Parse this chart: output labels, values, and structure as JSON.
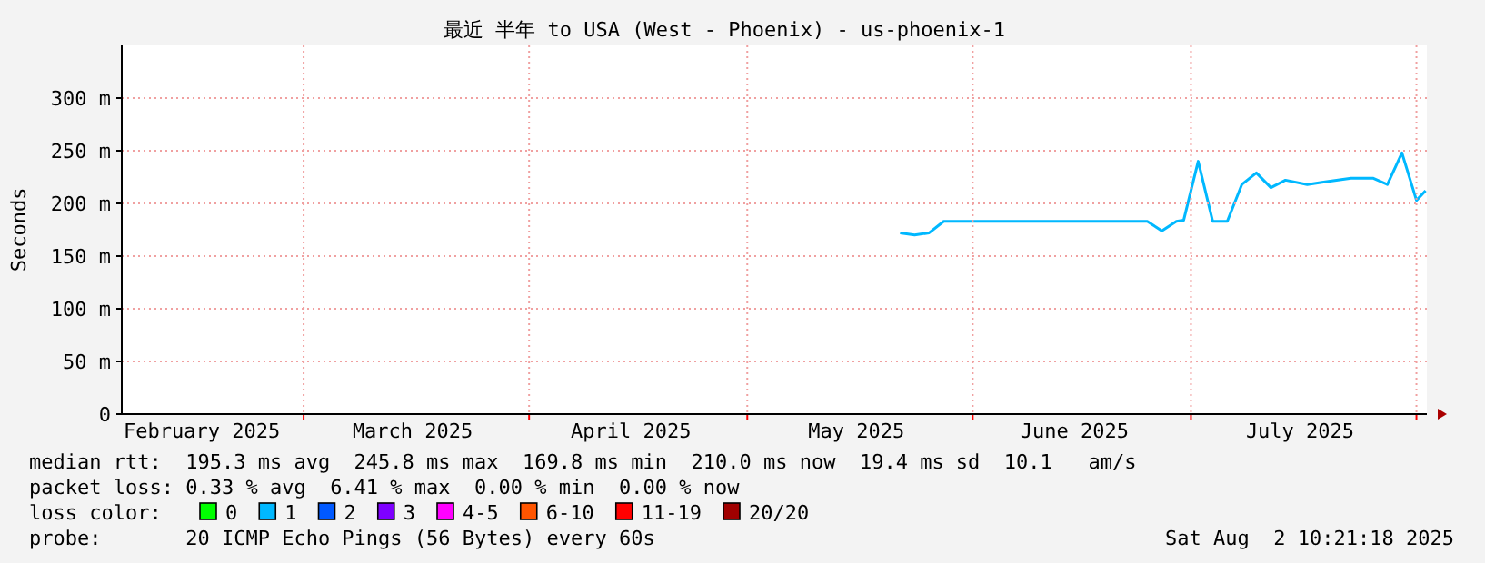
{
  "chart_data": {
    "type": "line",
    "title": "最近 半年 to USA (West - Phoenix) - us-phoenix-1",
    "ylabel": "Seconds",
    "xlim": [
      "2025-02-04",
      "2025-08-02T10:21"
    ],
    "xticks": [
      {
        "value": "2025-02-15",
        "label": "February 2025"
      },
      {
        "value": "2025-03-16",
        "label": "March 2025"
      },
      {
        "value": "2025-04-15",
        "label": "April 2025"
      },
      {
        "value": "2025-05-16",
        "label": "May 2025"
      },
      {
        "value": "2025-06-15",
        "label": "June 2025"
      },
      {
        "value": "2025-07-16",
        "label": "July 2025"
      },
      {
        "value": "2025-03-01",
        "label": null
      },
      {
        "value": "2025-04-01",
        "label": null
      },
      {
        "value": "2025-05-01",
        "label": null
      },
      {
        "value": "2025-06-01",
        "label": null
      },
      {
        "value": "2025-07-01",
        "label": null
      },
      {
        "value": "2025-08-01",
        "label": null
      }
    ],
    "ylim": [
      0,
      350
    ],
    "yticks": [
      0,
      {
        "value": 50,
        "label": "50 m"
      },
      {
        "value": 100,
        "label": "100 m"
      },
      {
        "value": 150,
        "label": "150 m"
      },
      {
        "value": 200,
        "label": "200 m"
      },
      {
        "value": 250,
        "label": "250 m"
      },
      {
        "value": 300,
        "label": "300 m"
      }
    ],
    "grid": true,
    "legend": "bottom",
    "legend_title": "loss color:",
    "marker": "none",
    "line_style": "solid",
    "x": [
      "2025-05-22",
      "2025-05-24",
      "2025-05-26",
      "2025-05-28",
      "2025-06-17",
      "2025-06-25",
      "2025-06-27",
      "2025-06-29",
      "2025-06-30",
      "2025-07-02",
      "2025-07-04",
      "2025-07-05",
      "2025-07-06",
      "2025-07-08",
      "2025-07-10",
      "2025-07-12",
      "2025-07-14",
      "2025-07-17",
      "2025-07-19",
      "2025-07-23",
      "2025-07-26",
      "2025-07-28",
      "2025-07-30",
      "2025-08-01",
      "2025-08-02T06:00"
    ],
    "series": [
      {
        "name": "0",
        "color": "#00ff00",
        "values": [
          null,
          null,
          null,
          null,
          null,
          null,
          null,
          null,
          null,
          null,
          null,
          null,
          null,
          null,
          null,
          null,
          null,
          null,
          null,
          null,
          null,
          null,
          null,
          null,
          null
        ]
      },
      {
        "name": "1",
        "color": "#00b8ff",
        "values": [
          172,
          170,
          172,
          183,
          183,
          183,
          174,
          183,
          184,
          240,
          183,
          183,
          183,
          218,
          229,
          215,
          222,
          218,
          220,
          224,
          224,
          218,
          248,
          203,
          212
        ]
      },
      {
        "name": "2",
        "color": "#0059ff",
        "values": [
          null,
          null,
          null,
          null,
          null,
          null,
          null,
          null,
          null,
          null,
          null,
          null,
          null,
          null,
          null,
          null,
          null,
          null,
          null,
          null,
          null,
          null,
          null,
          null,
          null
        ]
      },
      {
        "name": "3",
        "color": "#7e00ff",
        "values": [
          null,
          null,
          null,
          null,
          null,
          null,
          null,
          null,
          null,
          null,
          null,
          null,
          null,
          null,
          null,
          null,
          null,
          null,
          null,
          null,
          null,
          null,
          null,
          null,
          null
        ]
      },
      {
        "name": "4-5",
        "color": "#ff00ff",
        "values": [
          null,
          null,
          null,
          null,
          null,
          null,
          null,
          null,
          null,
          null,
          null,
          null,
          null,
          null,
          null,
          null,
          null,
          null,
          null,
          null,
          null,
          null,
          null,
          null,
          null
        ]
      },
      {
        "name": "6-10",
        "color": "#ff5500",
        "values": [
          null,
          null,
          null,
          null,
          null,
          null,
          null,
          null,
          null,
          null,
          null,
          null,
          null,
          null,
          null,
          null,
          null,
          null,
          null,
          null,
          null,
          null,
          null,
          null,
          null
        ]
      },
      {
        "name": "11-19",
        "color": "#ff0000",
        "values": [
          null,
          null,
          null,
          null,
          null,
          null,
          null,
          null,
          null,
          null,
          null,
          null,
          null,
          null,
          null,
          null,
          null,
          null,
          null,
          null,
          null,
          null,
          null,
          null,
          null
        ]
      },
      {
        "name": "20/20",
        "color": "#a10000",
        "values": [
          null,
          null,
          null,
          null,
          null,
          null,
          null,
          null,
          null,
          null,
          null,
          null,
          null,
          null,
          null,
          null,
          null,
          null,
          null,
          null,
          null,
          null,
          null,
          null,
          null
        ]
      }
    ],
    "annotations": [
      "median rtt:  195.3 ms avg  245.8 ms max  169.8 ms min  210.0 ms now  19.4 ms sd  10.1   am/s",
      "packet loss: 0.33 % avg  6.41 % max  0.00 % min  0.00 % now",
      "probe:       20 ICMP Echo Pings (56 Bytes) every 60s",
      "Sat Aug  2 10:21:18 2025"
    ]
  }
}
